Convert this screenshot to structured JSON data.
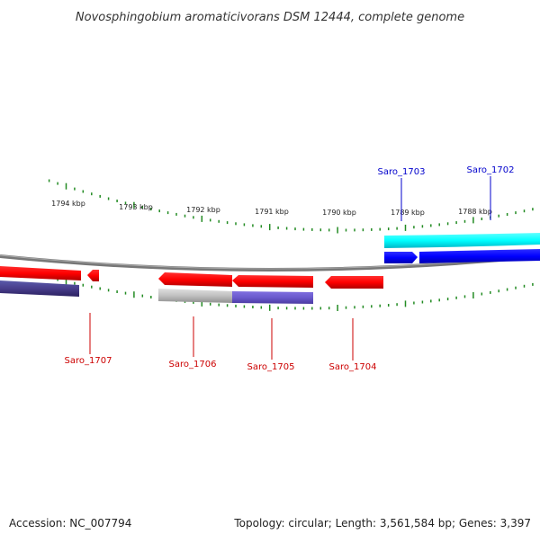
{
  "title": "Novosphingobium aromaticivorans DSM 12444, complete genome",
  "ruler": {
    "labels": [
      "1794 kbp",
      "1793 kbp",
      "1792 kbp",
      "1791 kbp",
      "1790 kbp",
      "1789 kbp",
      "1788 kbp"
    ],
    "tick_color": "#228b22"
  },
  "genes": [
    {
      "label": "Saro_1703",
      "color": "#0000cc"
    },
    {
      "label": "Saro_1702",
      "color": "#0000cc"
    },
    {
      "label": "Saro_1707",
      "color": "#cc0000"
    },
    {
      "label": "Saro_1706",
      "color": "#cc0000"
    },
    {
      "label": "Saro_1705",
      "color": "#cc0000"
    },
    {
      "label": "Saro_1704",
      "color": "#cc0000"
    }
  ],
  "footer": {
    "accession": "Accession: NC_007794",
    "summary": "Topology: circular; Length: 3,561,584 bp; Genes: 3,397"
  }
}
